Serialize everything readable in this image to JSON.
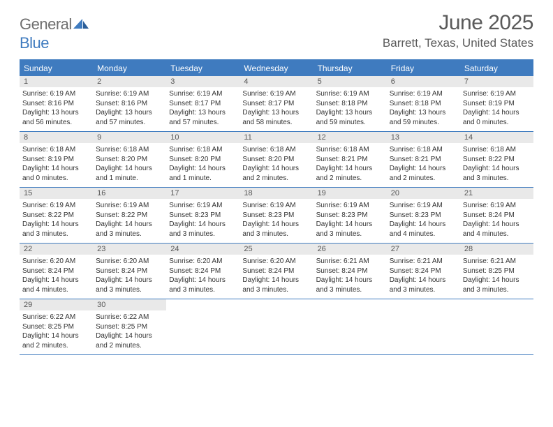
{
  "logo": {
    "text1": "General",
    "text2": "Blue"
  },
  "title": "June 2025",
  "location": "Barrett, Texas, United States",
  "colors": {
    "brand": "#3f7bbf",
    "header_text": "#5a5a5a",
    "logo_gray": "#6e6e6e",
    "daynum_bg": "#e9e9e9",
    "body_text": "#333333"
  },
  "weekdays": [
    "Sunday",
    "Monday",
    "Tuesday",
    "Wednesday",
    "Thursday",
    "Friday",
    "Saturday"
  ],
  "days": [
    {
      "n": "1",
      "sr": "Sunrise: 6:19 AM",
      "ss": "Sunset: 8:16 PM",
      "d1": "Daylight: 13 hours",
      "d2": "and 56 minutes."
    },
    {
      "n": "2",
      "sr": "Sunrise: 6:19 AM",
      "ss": "Sunset: 8:16 PM",
      "d1": "Daylight: 13 hours",
      "d2": "and 57 minutes."
    },
    {
      "n": "3",
      "sr": "Sunrise: 6:19 AM",
      "ss": "Sunset: 8:17 PM",
      "d1": "Daylight: 13 hours",
      "d2": "and 57 minutes."
    },
    {
      "n": "4",
      "sr": "Sunrise: 6:19 AM",
      "ss": "Sunset: 8:17 PM",
      "d1": "Daylight: 13 hours",
      "d2": "and 58 minutes."
    },
    {
      "n": "5",
      "sr": "Sunrise: 6:19 AM",
      "ss": "Sunset: 8:18 PM",
      "d1": "Daylight: 13 hours",
      "d2": "and 59 minutes."
    },
    {
      "n": "6",
      "sr": "Sunrise: 6:19 AM",
      "ss": "Sunset: 8:18 PM",
      "d1": "Daylight: 13 hours",
      "d2": "and 59 minutes."
    },
    {
      "n": "7",
      "sr": "Sunrise: 6:19 AM",
      "ss": "Sunset: 8:19 PM",
      "d1": "Daylight: 14 hours",
      "d2": "and 0 minutes."
    },
    {
      "n": "8",
      "sr": "Sunrise: 6:18 AM",
      "ss": "Sunset: 8:19 PM",
      "d1": "Daylight: 14 hours",
      "d2": "and 0 minutes."
    },
    {
      "n": "9",
      "sr": "Sunrise: 6:18 AM",
      "ss": "Sunset: 8:20 PM",
      "d1": "Daylight: 14 hours",
      "d2": "and 1 minute."
    },
    {
      "n": "10",
      "sr": "Sunrise: 6:18 AM",
      "ss": "Sunset: 8:20 PM",
      "d1": "Daylight: 14 hours",
      "d2": "and 1 minute."
    },
    {
      "n": "11",
      "sr": "Sunrise: 6:18 AM",
      "ss": "Sunset: 8:20 PM",
      "d1": "Daylight: 14 hours",
      "d2": "and 2 minutes."
    },
    {
      "n": "12",
      "sr": "Sunrise: 6:18 AM",
      "ss": "Sunset: 8:21 PM",
      "d1": "Daylight: 14 hours",
      "d2": "and 2 minutes."
    },
    {
      "n": "13",
      "sr": "Sunrise: 6:18 AM",
      "ss": "Sunset: 8:21 PM",
      "d1": "Daylight: 14 hours",
      "d2": "and 2 minutes."
    },
    {
      "n": "14",
      "sr": "Sunrise: 6:18 AM",
      "ss": "Sunset: 8:22 PM",
      "d1": "Daylight: 14 hours",
      "d2": "and 3 minutes."
    },
    {
      "n": "15",
      "sr": "Sunrise: 6:19 AM",
      "ss": "Sunset: 8:22 PM",
      "d1": "Daylight: 14 hours",
      "d2": "and 3 minutes."
    },
    {
      "n": "16",
      "sr": "Sunrise: 6:19 AM",
      "ss": "Sunset: 8:22 PM",
      "d1": "Daylight: 14 hours",
      "d2": "and 3 minutes."
    },
    {
      "n": "17",
      "sr": "Sunrise: 6:19 AM",
      "ss": "Sunset: 8:23 PM",
      "d1": "Daylight: 14 hours",
      "d2": "and 3 minutes."
    },
    {
      "n": "18",
      "sr": "Sunrise: 6:19 AM",
      "ss": "Sunset: 8:23 PM",
      "d1": "Daylight: 14 hours",
      "d2": "and 3 minutes."
    },
    {
      "n": "19",
      "sr": "Sunrise: 6:19 AM",
      "ss": "Sunset: 8:23 PM",
      "d1": "Daylight: 14 hours",
      "d2": "and 3 minutes."
    },
    {
      "n": "20",
      "sr": "Sunrise: 6:19 AM",
      "ss": "Sunset: 8:23 PM",
      "d1": "Daylight: 14 hours",
      "d2": "and 4 minutes."
    },
    {
      "n": "21",
      "sr": "Sunrise: 6:19 AM",
      "ss": "Sunset: 8:24 PM",
      "d1": "Daylight: 14 hours",
      "d2": "and 4 minutes."
    },
    {
      "n": "22",
      "sr": "Sunrise: 6:20 AM",
      "ss": "Sunset: 8:24 PM",
      "d1": "Daylight: 14 hours",
      "d2": "and 4 minutes."
    },
    {
      "n": "23",
      "sr": "Sunrise: 6:20 AM",
      "ss": "Sunset: 8:24 PM",
      "d1": "Daylight: 14 hours",
      "d2": "and 3 minutes."
    },
    {
      "n": "24",
      "sr": "Sunrise: 6:20 AM",
      "ss": "Sunset: 8:24 PM",
      "d1": "Daylight: 14 hours",
      "d2": "and 3 minutes."
    },
    {
      "n": "25",
      "sr": "Sunrise: 6:20 AM",
      "ss": "Sunset: 8:24 PM",
      "d1": "Daylight: 14 hours",
      "d2": "and 3 minutes."
    },
    {
      "n": "26",
      "sr": "Sunrise: 6:21 AM",
      "ss": "Sunset: 8:24 PM",
      "d1": "Daylight: 14 hours",
      "d2": "and 3 minutes."
    },
    {
      "n": "27",
      "sr": "Sunrise: 6:21 AM",
      "ss": "Sunset: 8:24 PM",
      "d1": "Daylight: 14 hours",
      "d2": "and 3 minutes."
    },
    {
      "n": "28",
      "sr": "Sunrise: 6:21 AM",
      "ss": "Sunset: 8:25 PM",
      "d1": "Daylight: 14 hours",
      "d2": "and 3 minutes."
    },
    {
      "n": "29",
      "sr": "Sunrise: 6:22 AM",
      "ss": "Sunset: 8:25 PM",
      "d1": "Daylight: 14 hours",
      "d2": "and 2 minutes."
    },
    {
      "n": "30",
      "sr": "Sunrise: 6:22 AM",
      "ss": "Sunset: 8:25 PM",
      "d1": "Daylight: 14 hours",
      "d2": "and 2 minutes."
    }
  ]
}
